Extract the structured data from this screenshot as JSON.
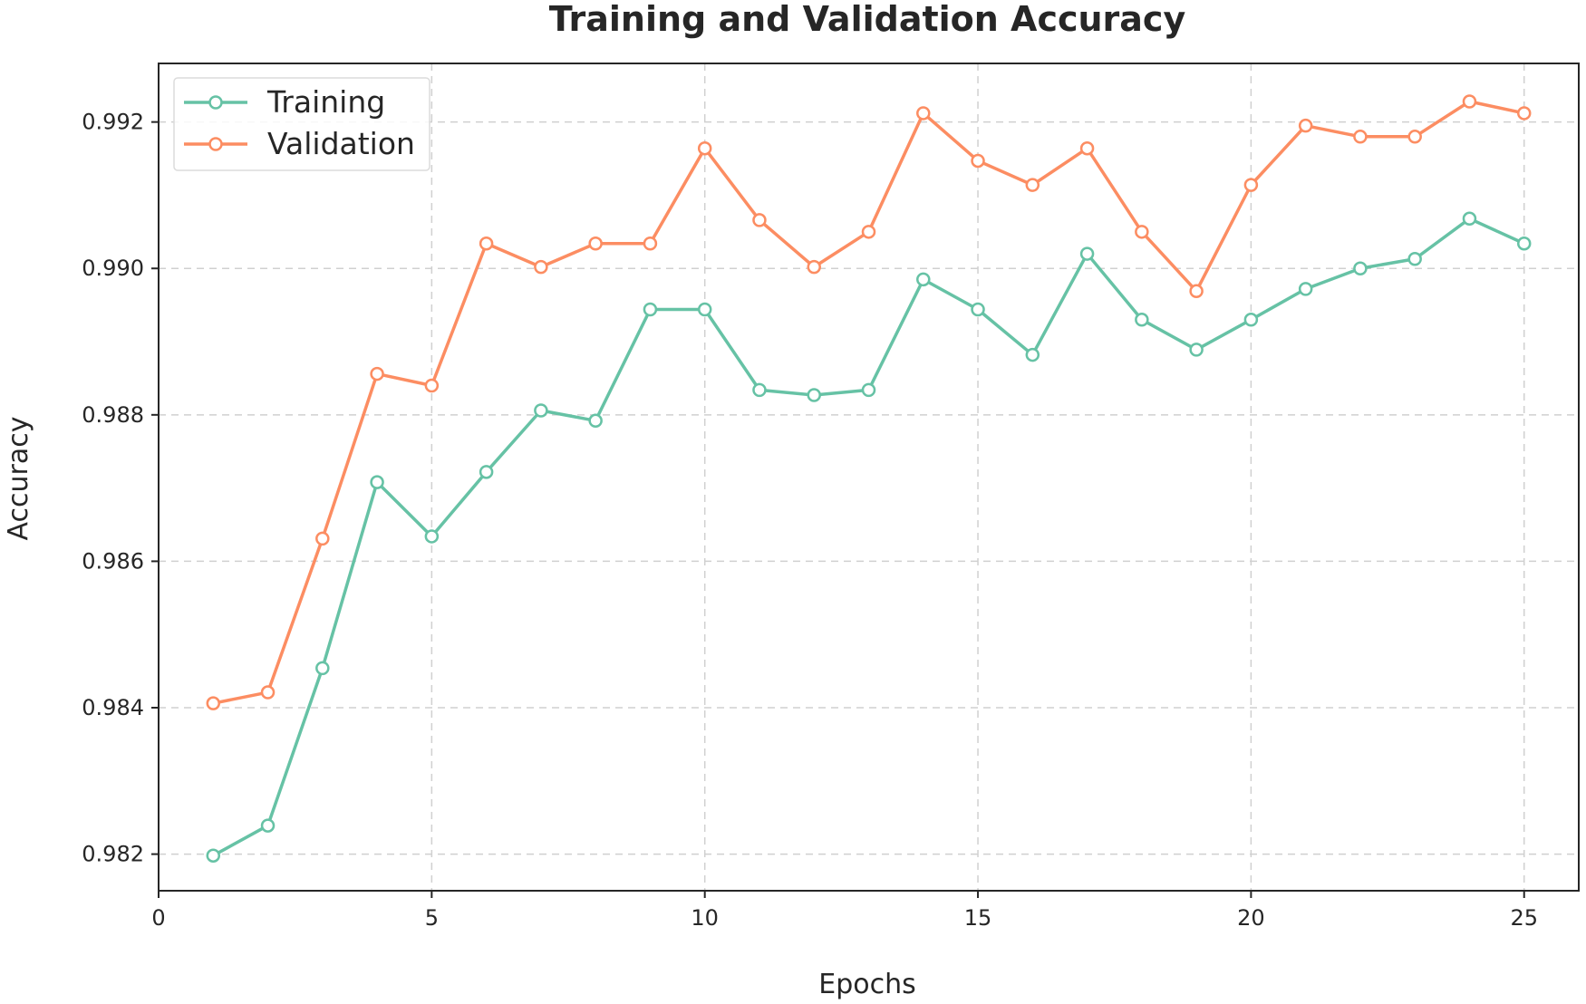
{
  "chart_data": {
    "type": "line",
    "title": "Training and Validation Accuracy",
    "xlabel": "Epochs",
    "ylabel": "Accuracy",
    "xlim": [
      0,
      26
    ],
    "ylim": [
      0.9815,
      0.9928
    ],
    "x_ticks": [
      0,
      5,
      10,
      15,
      20,
      25
    ],
    "x_tick_labels": [
      "0",
      "5",
      "10",
      "15",
      "20",
      "25"
    ],
    "y_ticks": [
      0.982,
      0.984,
      0.986,
      0.988,
      0.99,
      0.992
    ],
    "y_tick_labels": [
      "0.982",
      "0.984",
      "0.986",
      "0.988",
      "0.990",
      "0.992"
    ],
    "grid": true,
    "legend_position": "top-left",
    "x": [
      1,
      2,
      3,
      4,
      5,
      6,
      7,
      8,
      9,
      10,
      11,
      12,
      13,
      14,
      15,
      16,
      17,
      18,
      19,
      20,
      21,
      22,
      23,
      24,
      25
    ],
    "series": [
      {
        "name": "Training",
        "color": "#66c2a5",
        "values": [
          0.98198,
          0.98239,
          0.98454,
          0.98708,
          0.98634,
          0.98722,
          0.98806,
          0.98792,
          0.98944,
          0.98944,
          0.98834,
          0.98827,
          0.98834,
          0.98985,
          0.98944,
          0.98882,
          0.9902,
          0.9893,
          0.98889,
          0.9893,
          0.98972,
          0.99,
          0.99013,
          0.99068,
          0.99034
        ]
      },
      {
        "name": "Validation",
        "color": "#fc8d62",
        "values": [
          0.98406,
          0.98421,
          0.98631,
          0.98856,
          0.9884,
          0.99034,
          0.99002,
          0.99034,
          0.99034,
          0.99164,
          0.99066,
          0.99002,
          0.9905,
          0.99212,
          0.99147,
          0.99114,
          0.99164,
          0.9905,
          0.98969,
          0.99114,
          0.99195,
          0.9918,
          0.9918,
          0.99228,
          0.99212
        ]
      }
    ]
  }
}
